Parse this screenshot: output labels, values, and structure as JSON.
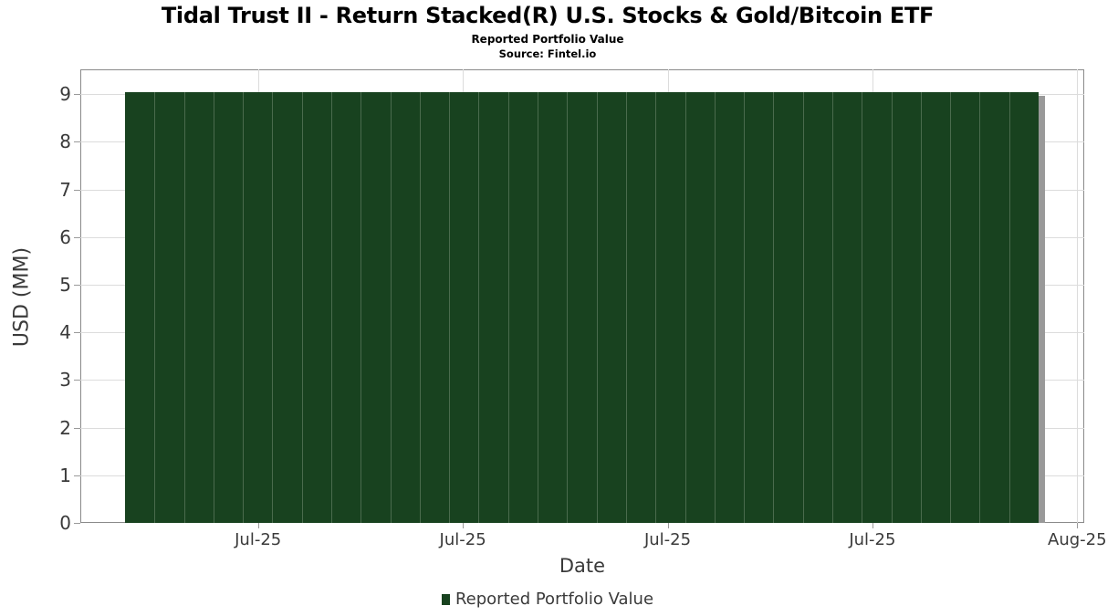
{
  "title": "Tidal Trust II - Return Stacked(R) U.S. Stocks & Gold/Bitcoin ETF",
  "subtitle": "Reported Portfolio Value",
  "source": "Source: Fintel.io",
  "legend": {
    "label": "Reported Portfolio Value",
    "marker_color": "#18421f"
  },
  "colors": {
    "bar": "#18421f",
    "bar_separator": "#4a6b4d",
    "shadow": "#999999",
    "grid": "#dcdcdc",
    "axis": "#8a8a8a",
    "text": "#3a3a3a"
  },
  "chart_data": {
    "type": "bar",
    "title": "Tidal Trust II - Return Stacked(R) U.S. Stocks & Gold/Bitcoin ETF",
    "subtitle": "Reported Portfolio Value",
    "source": "Source: Fintel.io",
    "xlabel": "Date",
    "ylabel": "USD (MM)",
    "ylim": [
      0,
      9.52
    ],
    "yticks": [
      0,
      1,
      2,
      3,
      4,
      5,
      6,
      7,
      8,
      9
    ],
    "xticklabels": [
      "Jul-25",
      "Jul-25",
      "Jul-25",
      "Jul-25",
      "Aug-25"
    ],
    "grid": true,
    "legend_position": "bottom",
    "series": [
      {
        "name": "Reported Portfolio Value",
        "values": [
          9.05,
          9.05,
          9.05,
          9.05,
          9.05,
          9.05,
          9.05,
          9.05,
          9.05,
          9.05,
          9.05,
          9.05,
          9.05,
          9.05,
          9.05,
          9.05,
          9.05,
          9.05,
          9.05,
          9.05,
          9.05,
          9.05,
          9.05,
          9.05,
          9.05,
          9.05,
          9.05,
          9.05,
          9.05,
          9.05,
          9.05
        ]
      }
    ]
  }
}
